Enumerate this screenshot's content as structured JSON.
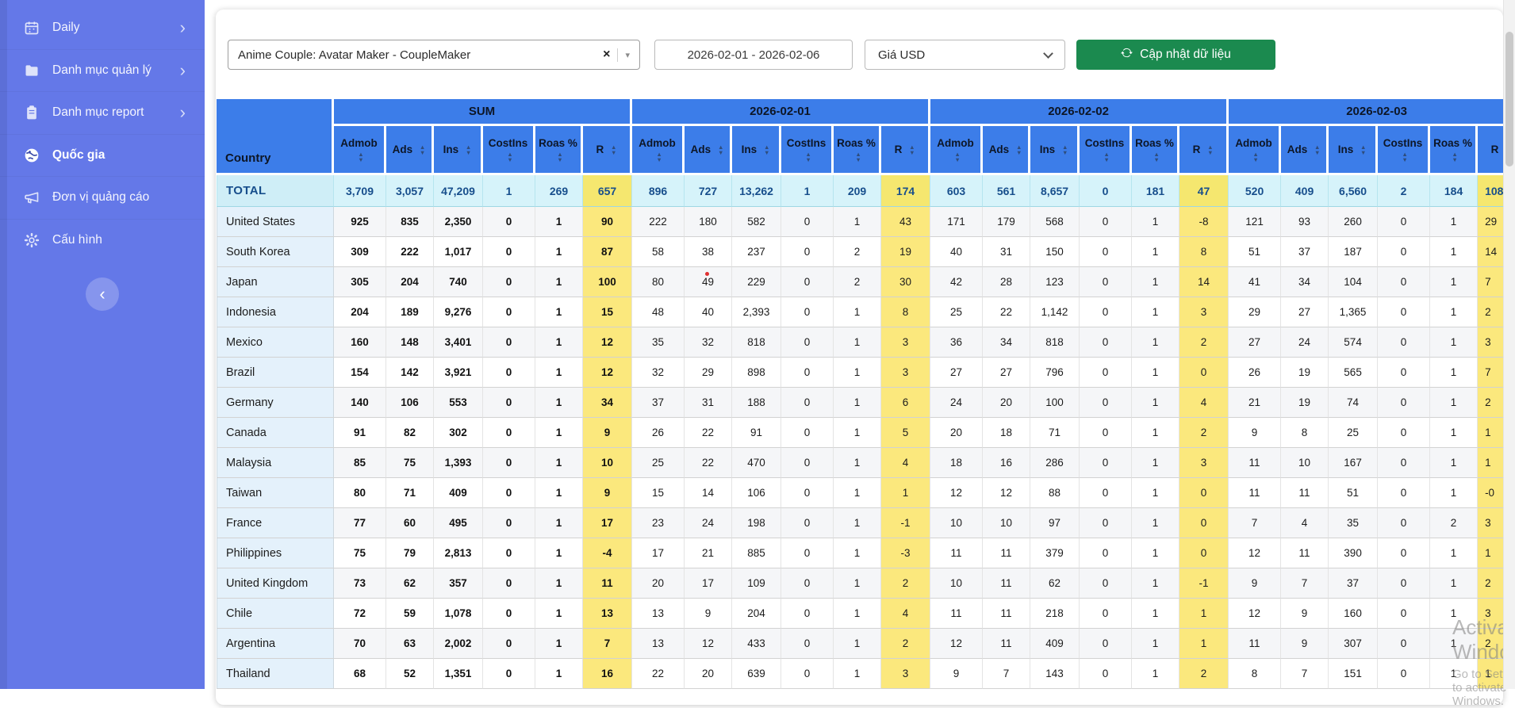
{
  "colors": {
    "sidebar_bg": "#6478e8",
    "header_blue": "#3c7de9",
    "total_bg": "#d6f3fa",
    "total_text": "#174e8c",
    "r_yellow": "#fbe87d",
    "country_cell_bg": "#e4f1fb",
    "button_green": "#1b8a4f"
  },
  "icons": {
    "clear": "×",
    "caret_down": "▾",
    "chevron_right": "›",
    "collapse_left": "‹"
  },
  "sidebar": {
    "items": [
      {
        "label": "Daily",
        "icon": "calendar-icon",
        "chevron": true,
        "active": false
      },
      {
        "label": "Danh mục quản lý",
        "icon": "folder-icon",
        "chevron": true,
        "active": false
      },
      {
        "label": "Danh mục report",
        "icon": "clipboard-icon",
        "chevron": true,
        "active": false
      },
      {
        "label": "Quốc gia",
        "icon": "globe-icon",
        "chevron": false,
        "active": true
      },
      {
        "label": "Đơn vị quảng cáo",
        "icon": "megaphone-icon",
        "chevron": false,
        "active": false
      },
      {
        "label": "Cấu hình",
        "icon": "gear-icon",
        "chevron": false,
        "active": false
      }
    ]
  },
  "toolbar": {
    "app_select_value": "Anime Couple: Avatar Maker - CoupleMaker",
    "date_range_value": "2026-02-01 - 2026-02-06",
    "currency_select_value": "Giá USD",
    "refresh_button_label": "Cập nhật dữ liệu"
  },
  "table": {
    "country_header": "Country",
    "groups": [
      "SUM",
      "2026-02-01",
      "2026-02-02",
      "2026-02-03"
    ],
    "metric_headers": [
      "Admob",
      "Ads",
      "Ins",
      "CostIns",
      "Roas %",
      "R"
    ],
    "rows": [
      {
        "country": "TOTAL",
        "is_total": true,
        "groups": [
          [
            "3,709",
            "3,057",
            "47,209",
            "1",
            "269",
            "657"
          ],
          [
            "896",
            "727",
            "13,262",
            "1",
            "209",
            "174"
          ],
          [
            "603",
            "561",
            "8,657",
            "0",
            "181",
            "47"
          ],
          [
            "520",
            "409",
            "6,560",
            "2",
            "184",
            "108"
          ]
        ]
      },
      {
        "country": "United States",
        "groups": [
          [
            "925",
            "835",
            "2,350",
            "0",
            "1",
            "90"
          ],
          [
            "222",
            "180",
            "582",
            "0",
            "1",
            "43"
          ],
          [
            "171",
            "179",
            "568",
            "0",
            "1",
            "-8"
          ],
          [
            "121",
            "93",
            "260",
            "0",
            "1",
            "29"
          ]
        ]
      },
      {
        "country": "South Korea",
        "groups": [
          [
            "309",
            "222",
            "1,017",
            "0",
            "1",
            "87"
          ],
          [
            "58",
            "38",
            "237",
            "0",
            "2",
            "19"
          ],
          [
            "40",
            "31",
            "150",
            "0",
            "1",
            "8"
          ],
          [
            "51",
            "37",
            "187",
            "0",
            "1",
            "14"
          ]
        ]
      },
      {
        "country": "Japan",
        "marker": {
          "group": 1,
          "col": 1
        },
        "groups": [
          [
            "305",
            "204",
            "740",
            "0",
            "1",
            "100"
          ],
          [
            "80",
            "49",
            "229",
            "0",
            "2",
            "30"
          ],
          [
            "42",
            "28",
            "123",
            "0",
            "1",
            "14"
          ],
          [
            "41",
            "34",
            "104",
            "0",
            "1",
            "7"
          ]
        ]
      },
      {
        "country": "Indonesia",
        "groups": [
          [
            "204",
            "189",
            "9,276",
            "0",
            "1",
            "15"
          ],
          [
            "48",
            "40",
            "2,393",
            "0",
            "1",
            "8"
          ],
          [
            "25",
            "22",
            "1,142",
            "0",
            "1",
            "3"
          ],
          [
            "29",
            "27",
            "1,365",
            "0",
            "1",
            "2"
          ]
        ]
      },
      {
        "country": "Mexico",
        "groups": [
          [
            "160",
            "148",
            "3,401",
            "0",
            "1",
            "12"
          ],
          [
            "35",
            "32",
            "818",
            "0",
            "1",
            "3"
          ],
          [
            "36",
            "34",
            "818",
            "0",
            "1",
            "2"
          ],
          [
            "27",
            "24",
            "574",
            "0",
            "1",
            "3"
          ]
        ]
      },
      {
        "country": "Brazil",
        "groups": [
          [
            "154",
            "142",
            "3,921",
            "0",
            "1",
            "12"
          ],
          [
            "32",
            "29",
            "898",
            "0",
            "1",
            "3"
          ],
          [
            "27",
            "27",
            "796",
            "0",
            "1",
            "0"
          ],
          [
            "26",
            "19",
            "565",
            "0",
            "1",
            "7"
          ]
        ]
      },
      {
        "country": "Germany",
        "groups": [
          [
            "140",
            "106",
            "553",
            "0",
            "1",
            "34"
          ],
          [
            "37",
            "31",
            "188",
            "0",
            "1",
            "6"
          ],
          [
            "24",
            "20",
            "100",
            "0",
            "1",
            "4"
          ],
          [
            "21",
            "19",
            "74",
            "0",
            "1",
            "2"
          ]
        ]
      },
      {
        "country": "Canada",
        "groups": [
          [
            "91",
            "82",
            "302",
            "0",
            "1",
            "9"
          ],
          [
            "26",
            "22",
            "91",
            "0",
            "1",
            "5"
          ],
          [
            "20",
            "18",
            "71",
            "0",
            "1",
            "2"
          ],
          [
            "9",
            "8",
            "25",
            "0",
            "1",
            "1"
          ]
        ]
      },
      {
        "country": "Malaysia",
        "groups": [
          [
            "85",
            "75",
            "1,393",
            "0",
            "1",
            "10"
          ],
          [
            "25",
            "22",
            "470",
            "0",
            "1",
            "4"
          ],
          [
            "18",
            "16",
            "286",
            "0",
            "1",
            "3"
          ],
          [
            "11",
            "10",
            "167",
            "0",
            "1",
            "1"
          ]
        ]
      },
      {
        "country": "Taiwan",
        "groups": [
          [
            "80",
            "71",
            "409",
            "0",
            "1",
            "9"
          ],
          [
            "15",
            "14",
            "106",
            "0",
            "1",
            "1"
          ],
          [
            "12",
            "12",
            "88",
            "0",
            "1",
            "0"
          ],
          [
            "11",
            "11",
            "51",
            "0",
            "1",
            "-0"
          ]
        ]
      },
      {
        "country": "France",
        "groups": [
          [
            "77",
            "60",
            "495",
            "0",
            "1",
            "17"
          ],
          [
            "23",
            "24",
            "198",
            "0",
            "1",
            "-1"
          ],
          [
            "10",
            "10",
            "97",
            "0",
            "1",
            "0"
          ],
          [
            "7",
            "4",
            "35",
            "0",
            "2",
            "3"
          ]
        ]
      },
      {
        "country": "Philippines",
        "groups": [
          [
            "75",
            "79",
            "2,813",
            "0",
            "1",
            "-4"
          ],
          [
            "17",
            "21",
            "885",
            "0",
            "1",
            "-3"
          ],
          [
            "11",
            "11",
            "379",
            "0",
            "1",
            "0"
          ],
          [
            "12",
            "11",
            "390",
            "0",
            "1",
            "1"
          ]
        ]
      },
      {
        "country": "United Kingdom",
        "groups": [
          [
            "73",
            "62",
            "357",
            "0",
            "1",
            "11"
          ],
          [
            "20",
            "17",
            "109",
            "0",
            "1",
            "2"
          ],
          [
            "10",
            "11",
            "62",
            "0",
            "1",
            "-1"
          ],
          [
            "9",
            "7",
            "37",
            "0",
            "1",
            "2"
          ]
        ]
      },
      {
        "country": "Chile",
        "groups": [
          [
            "72",
            "59",
            "1,078",
            "0",
            "1",
            "13"
          ],
          [
            "13",
            "9",
            "204",
            "0",
            "1",
            "4"
          ],
          [
            "11",
            "11",
            "218",
            "0",
            "1",
            "1"
          ],
          [
            "12",
            "9",
            "160",
            "0",
            "1",
            "3"
          ]
        ]
      },
      {
        "country": "Argentina",
        "groups": [
          [
            "70",
            "63",
            "2,002",
            "0",
            "1",
            "7"
          ],
          [
            "13",
            "12",
            "433",
            "0",
            "1",
            "2"
          ],
          [
            "12",
            "11",
            "409",
            "0",
            "1",
            "1"
          ],
          [
            "11",
            "9",
            "307",
            "0",
            "1",
            "2"
          ]
        ]
      },
      {
        "country": "Thailand",
        "groups": [
          [
            "68",
            "52",
            "1,351",
            "0",
            "1",
            "16"
          ],
          [
            "22",
            "20",
            "639",
            "0",
            "1",
            "3"
          ],
          [
            "9",
            "7",
            "143",
            "0",
            "1",
            "2"
          ],
          [
            "8",
            "7",
            "151",
            "0",
            "1",
            "1"
          ]
        ]
      }
    ]
  },
  "watermark": {
    "line1": "Activate Windows",
    "line2": "Go to Settings to activate Windows."
  }
}
